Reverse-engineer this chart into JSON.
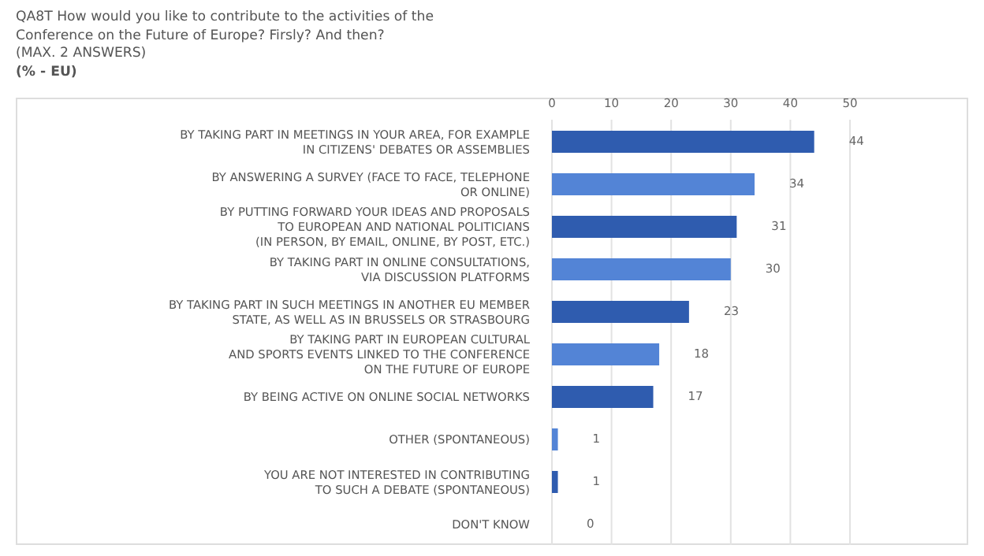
{
  "chart_data": {
    "type": "bar",
    "orientation": "horizontal",
    "title": "QA8T How would you like to contribute to the activities of the Conference on the Future of Europe? Firsly? And then?",
    "subtitle": "(MAX. 2 ANSWERS)",
    "annotations": [
      "(% - EU)"
    ],
    "categories": [
      "BY TAKING PART IN MEETINGS IN YOUR AREA, FOR EXAMPLE\nIN CITIZENS' DEBATES OR ASSEMBLIES",
      "BY ANSWERING A SURVEY (FACE TO FACE, TELEPHONE\nOR ONLINE)",
      "BY PUTTING FORWARD YOUR IDEAS AND PROPOSALS\nTO EUROPEAN AND NATIONAL POLITICIANS\n(IN PERSON, BY EMAIL, ONLINE, BY POST, ETC.)",
      "BY TAKING PART IN ONLINE CONSULTATIONS,\nVIA DISCUSSION PLATFORMS",
      "BY TAKING PART IN SUCH MEETINGS IN ANOTHER EU MEMBER\nSTATE, AS WELL AS IN BRUSSELS OR STRASBOURG",
      "BY TAKING PART IN EUROPEAN CULTURAL\nAND SPORTS EVENTS LINKED TO THE CONFERENCE\nON THE FUTURE OF EUROPE",
      "BY BEING ACTIVE ON ONLINE SOCIAL NETWORKS",
      "OTHER (SPONTANEOUS)",
      "YOU ARE NOT INTERESTED IN CONTRIBUTING\nTO SUCH A DEBATE (SPONTANEOUS)",
      "DON'T KNOW"
    ],
    "values": [
      44,
      34,
      31,
      30,
      23,
      18,
      17,
      1,
      1,
      0
    ],
    "colors": [
      "#2f5caf",
      "#5384d6",
      "#2f5caf",
      "#5384d6",
      "#2f5caf",
      "#5384d6",
      "#2f5caf",
      "#5384d6",
      "#2f5caf",
      "#5384d6"
    ],
    "data_labels": true,
    "xlim": [
      0,
      50
    ],
    "xticks": [
      0,
      10,
      20,
      30,
      40,
      50
    ],
    "grid": "x"
  }
}
